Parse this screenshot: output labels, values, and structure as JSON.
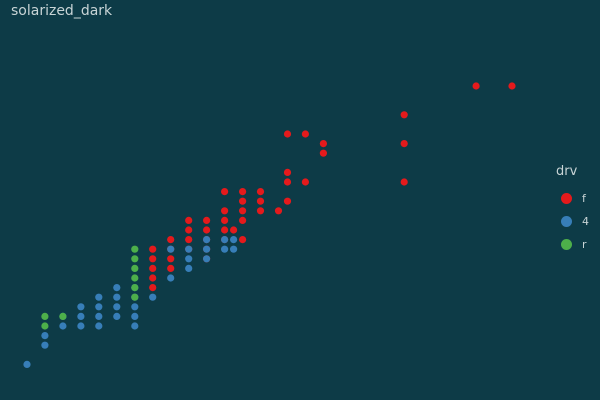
{
  "title": "solarized_dark",
  "colors": {
    "background": "#0d3b47",
    "f": "#e41a1c",
    "4": "#377eb8",
    "r": "#4daf4a",
    "text": "#c8d4d6"
  },
  "chart_data": {
    "type": "scatter",
    "title": "solarized_dark",
    "xlabel": "",
    "ylabel": "",
    "xlim": [
      1.5,
      7.2
    ],
    "ylim": [
      10,
      45
    ],
    "grid": false,
    "legend": {
      "title": "drv",
      "position": "right",
      "entries": [
        "f",
        "4",
        "r"
      ]
    },
    "series": [
      {
        "name": "f",
        "points": [
          [
            6.6,
            40
          ],
          [
            7,
            40
          ],
          [
            5.8,
            37
          ],
          [
            4.5,
            35
          ],
          [
            4.7,
            35
          ],
          [
            4.9,
            34
          ],
          [
            4.9,
            33
          ],
          [
            5.8,
            34
          ],
          [
            5.8,
            30
          ],
          [
            4.5,
            31
          ],
          [
            4.5,
            30
          ],
          [
            4.7,
            30
          ],
          [
            3.8,
            29
          ],
          [
            4,
            29
          ],
          [
            4.2,
            29
          ],
          [
            4,
            28
          ],
          [
            4.2,
            28
          ],
          [
            4.5,
            28
          ],
          [
            3.8,
            27
          ],
          [
            4,
            27
          ],
          [
            4.2,
            27
          ],
          [
            4.4,
            27
          ],
          [
            3.4,
            26
          ],
          [
            3.6,
            26
          ],
          [
            3.8,
            26
          ],
          [
            4,
            26
          ],
          [
            3.4,
            25
          ],
          [
            3.6,
            25
          ],
          [
            3.8,
            25
          ],
          [
            3.9,
            25
          ],
          [
            3.2,
            24
          ],
          [
            3.4,
            24
          ],
          [
            3.6,
            24
          ],
          [
            3.8,
            24
          ],
          [
            4,
            24
          ],
          [
            3,
            23
          ],
          [
            3.2,
            23
          ],
          [
            3.4,
            23
          ],
          [
            3.6,
            23
          ],
          [
            3,
            22
          ],
          [
            3.2,
            22
          ],
          [
            3.6,
            22
          ],
          [
            3,
            21
          ],
          [
            3.2,
            21
          ],
          [
            3,
            20
          ],
          [
            3,
            19
          ]
        ]
      },
      {
        "name": "4",
        "points": [
          [
            3.6,
            24
          ],
          [
            3.8,
            24
          ],
          [
            3.9,
            24
          ],
          [
            3.2,
            23
          ],
          [
            3.4,
            23
          ],
          [
            3.6,
            23
          ],
          [
            3.8,
            23
          ],
          [
            3.9,
            23
          ],
          [
            3.4,
            22
          ],
          [
            3.6,
            22
          ],
          [
            3.4,
            21
          ],
          [
            3.2,
            20
          ],
          [
            2.6,
            19
          ],
          [
            2.8,
            19
          ],
          [
            2.4,
            18
          ],
          [
            2.6,
            18
          ],
          [
            2.8,
            18
          ],
          [
            3,
            18
          ],
          [
            2.2,
            17
          ],
          [
            2.4,
            17
          ],
          [
            2.6,
            17
          ],
          [
            2.8,
            17
          ],
          [
            2,
            16
          ],
          [
            2.2,
            16
          ],
          [
            2.4,
            16
          ],
          [
            2.6,
            16
          ],
          [
            2.8,
            16
          ],
          [
            2,
            15
          ],
          [
            2.2,
            15
          ],
          [
            2.4,
            15
          ],
          [
            2.8,
            15
          ],
          [
            1.8,
            14
          ],
          [
            1.8,
            13
          ],
          [
            1.6,
            11
          ]
        ]
      },
      {
        "name": "r",
        "points": [
          [
            2.8,
            23
          ],
          [
            2.8,
            22
          ],
          [
            2.8,
            21
          ],
          [
            2.8,
            20
          ],
          [
            2.8,
            19
          ],
          [
            2.8,
            18
          ],
          [
            1.8,
            16
          ],
          [
            2,
            16
          ],
          [
            1.8,
            15
          ]
        ]
      }
    ]
  }
}
